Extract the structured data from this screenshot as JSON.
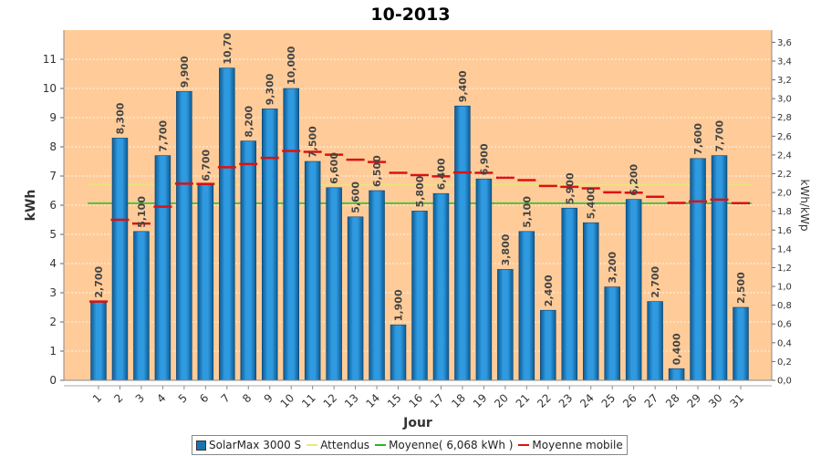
{
  "chart_data": {
    "type": "bar",
    "title": "10-2013",
    "xlabel": "Jour",
    "ylabel": "kWh",
    "y2label": "kWh/kWp",
    "ylim": [
      0,
      12
    ],
    "y_ticks": [
      0,
      1,
      2,
      3,
      4,
      5,
      6,
      7,
      8,
      9,
      10,
      11
    ],
    "y2lim": [
      0,
      3.73
    ],
    "y2_ticks": [
      "0,0",
      "0,2",
      "0,4",
      "0,6",
      "0,8",
      "1,0",
      "1,2",
      "1,4",
      "1,6",
      "1,8",
      "2,0",
      "2,2",
      "2,4",
      "2,6",
      "2,8",
      "3,0",
      "3,2",
      "3,4",
      "3,6"
    ],
    "categories": [
      "1",
      "2",
      "3",
      "4",
      "5",
      "6",
      "7",
      "8",
      "9",
      "10",
      "11",
      "12",
      "13",
      "14",
      "15",
      "16",
      "17",
      "18",
      "19",
      "20",
      "21",
      "22",
      "23",
      "24",
      "25",
      "26",
      "27",
      "28",
      "29",
      "30",
      "31"
    ],
    "series": [
      {
        "name": "SolarMax 3000 S",
        "values": [
          2.7,
          8.3,
          5.1,
          7.7,
          9.9,
          6.7,
          10.7,
          8.2,
          9.3,
          10.0,
          7.5,
          6.6,
          5.6,
          6.5,
          1.9,
          5.8,
          6.4,
          9.4,
          6.9,
          3.8,
          5.1,
          2.4,
          5.9,
          5.4,
          3.2,
          6.2,
          2.7,
          0.4,
          7.6,
          7.7,
          2.5
        ],
        "labels": [
          "2,700",
          "8,300",
          "5,100",
          "7,700",
          "9,900",
          "6,700",
          "10,70",
          "8,200",
          "9,300",
          "10,000",
          "7,500",
          "6,600",
          "5,600",
          "6,500",
          "1,900",
          "5,800",
          "6,400",
          "9,400",
          "6,900",
          "3,800",
          "5,100",
          "2,400",
          "5,900",
          "5,400",
          "3,200",
          "6,200",
          "2,700",
          "0,400",
          "7,600",
          "7,700",
          "2,500"
        ],
        "color": "#1a74b4"
      },
      {
        "name": "Attendus",
        "value": 6.7,
        "color": "#e8e87a"
      },
      {
        "name": "Moyenne( 6,068 kWh )",
        "value": 6.068,
        "color": "#22bb22"
      },
      {
        "name": "Moyenne mobile",
        "values": [
          2.7,
          5.5,
          5.37,
          5.95,
          6.74,
          6.73,
          7.3,
          7.41,
          7.62,
          7.86,
          7.83,
          7.73,
          7.56,
          7.48,
          7.11,
          7.03,
          6.99,
          7.12,
          7.11,
          6.94,
          6.86,
          6.66,
          6.63,
          6.58,
          6.44,
          6.43,
          6.29,
          6.08,
          6.13,
          6.19,
          6.07
        ],
        "color": "#dd1111"
      }
    ],
    "colors": {
      "plot_background": "#ffcc99",
      "gridline": "#ffffff"
    },
    "legend_position": "bottom",
    "grid": true
  }
}
